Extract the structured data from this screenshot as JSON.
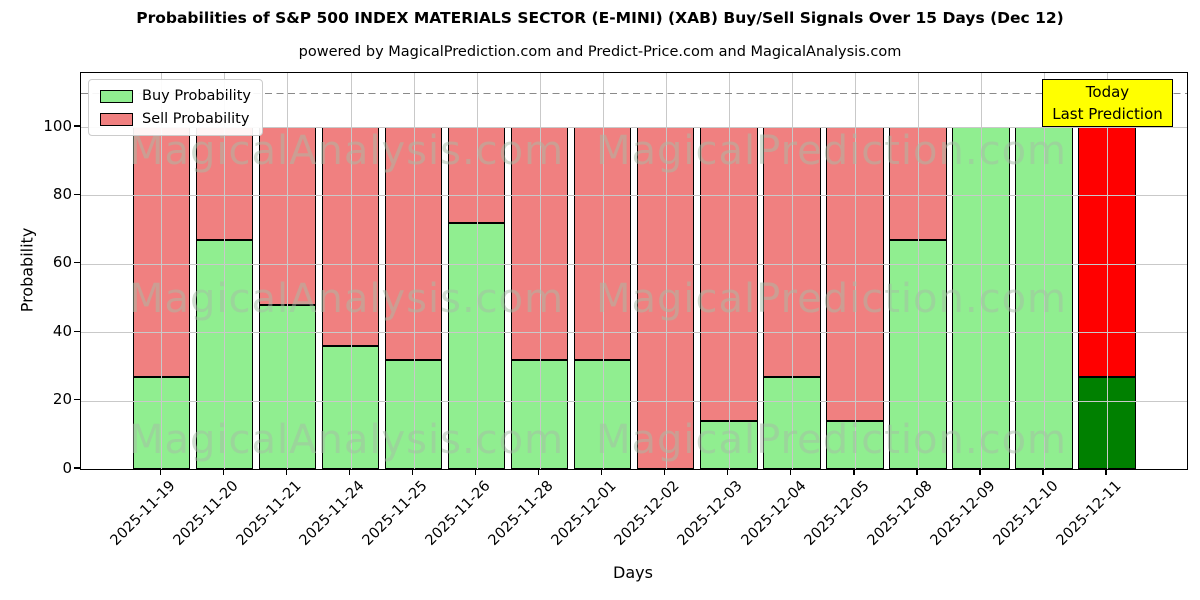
{
  "subtitle": "powered by MagicalPrediction.com and Predict-Price.com and MagicalAnalysis.com",
  "watermarks": {
    "left": "MagicalAnalysis.com",
    "right": "MagicalPrediction.com"
  },
  "legend": [
    {
      "label": "Buy Probability",
      "color": "#90ee90"
    },
    {
      "label": "Sell Probability",
      "color": "#f08080"
    }
  ],
  "annotation_box": {
    "line1": "Today",
    "line2": "Last Prediction",
    "bg": "#ffff00"
  },
  "chart_data": {
    "type": "bar",
    "stacked": true,
    "title": "Probabilities of S&P 500 INDEX MATERIALS SECTOR (E-MINI) (XAB) Buy/Sell Signals Over 15 Days (Dec 12)",
    "xlabel": "Days",
    "ylabel": "Probability",
    "categories": [
      "2025-11-19",
      "2025-11-20",
      "2025-11-21",
      "2025-11-24",
      "2025-11-25",
      "2025-11-26",
      "2025-11-28",
      "2025-12-01",
      "2025-12-02",
      "2025-12-03",
      "2025-12-04",
      "2025-12-05",
      "2025-12-08",
      "2025-12-09",
      "2025-12-10",
      "2025-12-11"
    ],
    "series": [
      {
        "name": "Buy Probability",
        "color": "#90ee90",
        "values": [
          27,
          67,
          48,
          36,
          32,
          72,
          32,
          32,
          0,
          14,
          27,
          14,
          67,
          100,
          100,
          27
        ]
      },
      {
        "name": "Sell Probability",
        "color": "#f08080",
        "values": [
          73,
          33,
          52,
          64,
          68,
          28,
          68,
          68,
          100,
          86,
          73,
          86,
          33,
          0,
          0,
          73
        ]
      }
    ],
    "last_bar_colors": {
      "buy": "#008000",
      "sell": "#ff0000"
    },
    "yticks": [
      0,
      20,
      40,
      60,
      80,
      100
    ],
    "ylim": [
      0,
      116
    ],
    "dashed_line_y": 110,
    "grid": true,
    "legend_position": "upper left"
  }
}
